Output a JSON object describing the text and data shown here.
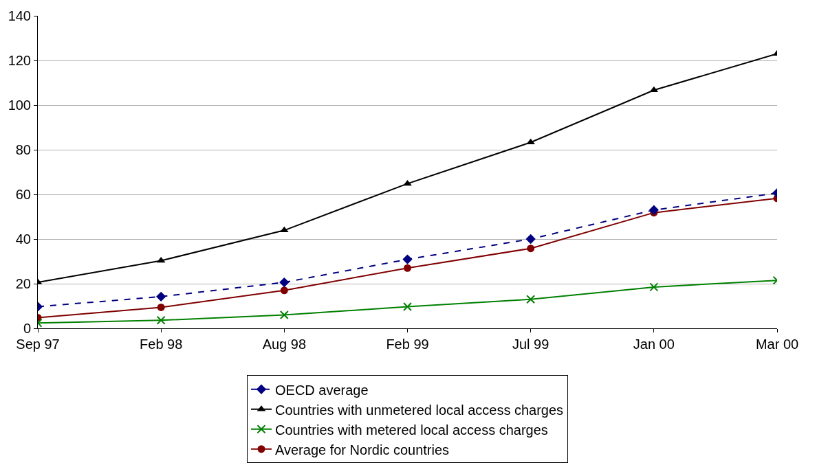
{
  "chart_data": {
    "type": "line",
    "categories": [
      "Sep 97",
      "Feb 98",
      "Aug 98",
      "Feb 99",
      "Jul 99",
      "Jan 00",
      "Mar 00"
    ],
    "series": [
      {
        "name": "OECD average",
        "color": "#000080",
        "marker": "diamond",
        "line_style": "dashed",
        "values": [
          9.7,
          14.2,
          20.6,
          30.9,
          40,
          53,
          60.6
        ]
      },
      {
        "name": "Countries with unmetered local access charges",
        "color": "#000000",
        "marker": "triangle",
        "line_style": "solid",
        "values": [
          20.6,
          30.3,
          43.9,
          64.8,
          83.3,
          106.7,
          123
        ]
      },
      {
        "name": "Countries with metered local access charges",
        "color": "#008000",
        "marker": "cross",
        "line_style": "solid",
        "values": [
          2.4,
          3.6,
          6,
          9.7,
          13,
          18.5,
          21.5
        ]
      },
      {
        "name": "Average for Nordic countries",
        "color": "#800000",
        "marker": "circle",
        "line_style": "solid",
        "values": [
          4.8,
          9.4,
          17,
          27,
          35.8,
          51.8,
          58.2
        ]
      }
    ],
    "ylim": [
      0,
      140
    ],
    "yticks": [
      0,
      20,
      40,
      60,
      80,
      100,
      120,
      140
    ],
    "grid": "y",
    "legend": "bottom"
  }
}
